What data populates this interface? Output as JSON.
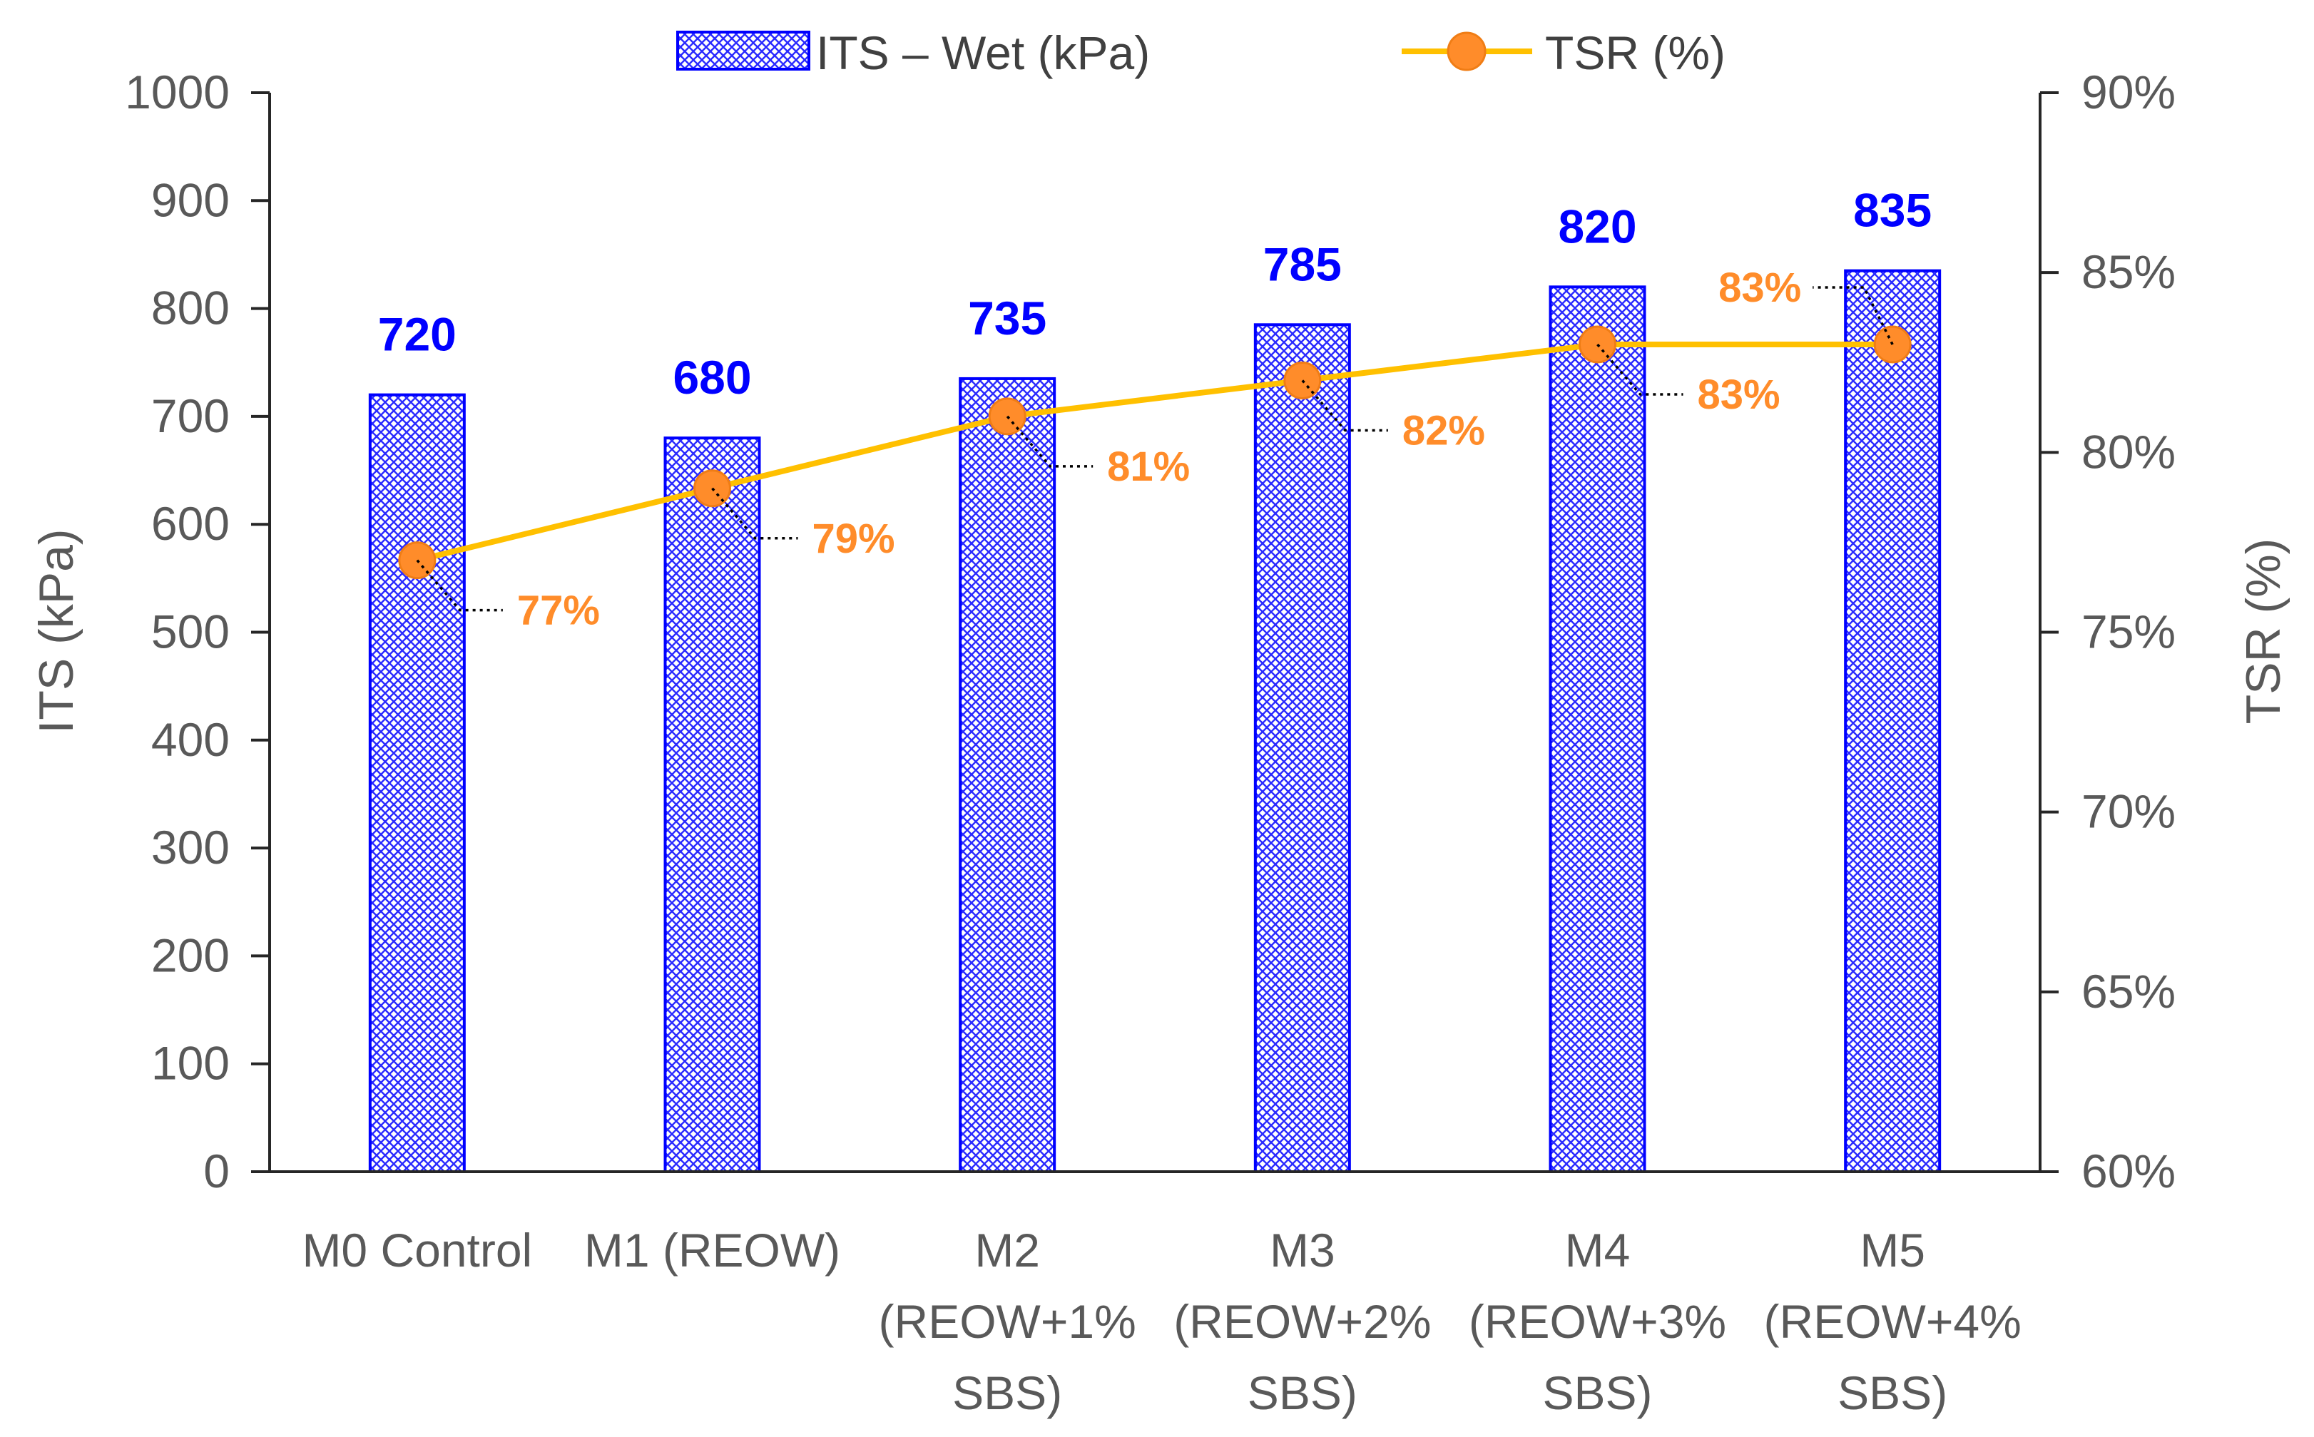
{
  "chart_data": {
    "type": "bar",
    "title": "",
    "categories": [
      [
        "M0 Control"
      ],
      [
        "M1 (REOW)"
      ],
      [
        "M2",
        "(REOW+1%",
        "SBS)"
      ],
      [
        "M3",
        "(REOW+2%",
        "SBS)"
      ],
      [
        "M4",
        "(REOW+3%",
        "SBS)"
      ],
      [
        "M5",
        "(REOW+4%",
        "SBS)"
      ]
    ],
    "ylabel": "ITS (kPa)",
    "y2label": "TSR (%)",
    "ylim": [
      0,
      1000
    ],
    "y2lim": [
      60,
      90
    ],
    "yticks": [
      "0",
      "100",
      "200",
      "300",
      "400",
      "500",
      "600",
      "700",
      "800",
      "900",
      "1000"
    ],
    "y2ticks": [
      "60%",
      "65%",
      "70%",
      "75%",
      "80%",
      "85%",
      "90%"
    ],
    "grid": false,
    "legend_position": "top-center",
    "series": [
      {
        "name": "ITS – Wet (kPa)",
        "type": "bar",
        "axis": "left",
        "values": [
          720,
          680,
          735,
          785,
          820,
          835
        ],
        "labels": [
          "720",
          "680",
          "735",
          "785",
          "820",
          "835"
        ],
        "color": "#0000ff"
      },
      {
        "name": "TSR (%)",
        "type": "line",
        "axis": "right",
        "values": [
          77,
          79,
          81,
          82,
          83,
          83
        ],
        "labels": [
          "77%",
          "79%",
          "81%",
          "82%",
          "83%",
          "83%"
        ],
        "color": "#ffc000",
        "marker_color": "#ff8c2a",
        "label_color": "#ff8c2a"
      }
    ]
  }
}
